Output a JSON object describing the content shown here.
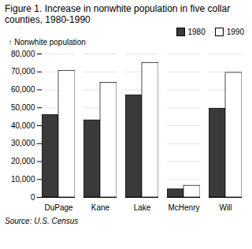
{
  "chart_data": {
    "type": "bar",
    "title": "Figure 1. Increase in nonwhite population in five collar counties, 1980-1990",
    "ylabel": "Nonwhite population",
    "source": "Source: U.S. Census",
    "categories": [
      "DuPage",
      "Kane",
      "Lake",
      "McHenry",
      "Will"
    ],
    "series": [
      {
        "name": "1980",
        "color": "#3a3a3a",
        "values": [
          46000,
          43000,
          57000,
          4500,
          49500
        ]
      },
      {
        "name": "1990",
        "color": "#ffffff",
        "values": [
          70500,
          64000,
          75000,
          6500,
          69500
        ]
      }
    ],
    "ylim": [
      0,
      80000
    ],
    "yticks": [
      0,
      {
        "value": 10000,
        "label": "10,000"
      },
      {
        "value": 20000,
        "label": "20,000"
      },
      {
        "value": 30000,
        "label": "30,000"
      },
      {
        "value": 40000,
        "label": "40,000"
      },
      {
        "value": 50000,
        "label": "50,000"
      },
      {
        "value": 60000,
        "label": "60,000"
      },
      {
        "value": 70000,
        "label": "70,000"
      },
      {
        "value": 80000,
        "label": "80,000"
      }
    ],
    "grid": true,
    "legend": "upper right"
  }
}
